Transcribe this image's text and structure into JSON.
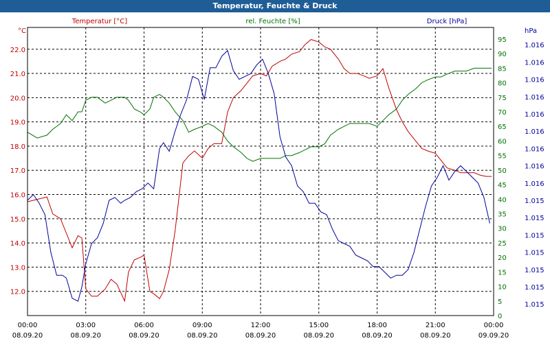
{
  "window": {
    "title": "Temperatur, Feuchte & Druck"
  },
  "colors": {
    "temperature": "#c00000",
    "humidity": "#007000",
    "pressure": "#00009a",
    "grid": "#000000",
    "title_bg": "#1f5d96"
  },
  "chart_data": {
    "type": "line",
    "title": "Temperatur, Feuchte & Druck",
    "x_ticks": [
      {
        "time": "00:00",
        "date": "08.09.20"
      },
      {
        "time": "03:00",
        "date": "08.09.20"
      },
      {
        "time": "06:00",
        "date": "08.09.20"
      },
      {
        "time": "09:00",
        "date": "08.09.20"
      },
      {
        "time": "12:00",
        "date": "08.09.20"
      },
      {
        "time": "15:00",
        "date": "08.09.20"
      },
      {
        "time": "18:00",
        "date": "08.09.20"
      },
      {
        "time": "21:00",
        "date": "08.09.20"
      },
      {
        "time": "00:00",
        "date": "09.09.20"
      }
    ],
    "x_range_hours": [
      0,
      24
    ],
    "grid": true,
    "axes": {
      "temperature": {
        "label": "Temperatur [°C]",
        "unit": "°C",
        "range": [
          11.0,
          22.9
        ],
        "ticks": [
          "12.0",
          "13.0",
          "14.0",
          "15.0",
          "16.0",
          "17.0",
          "18.0",
          "19.0",
          "20.0",
          "21.0",
          "22.0"
        ],
        "tick_values": [
          12,
          13,
          14,
          15,
          16,
          17,
          18,
          19,
          20,
          21,
          22
        ]
      },
      "humidity": {
        "label": "rel. Feuchte [%]",
        "unit": "%",
        "range": [
          0,
          99
        ],
        "ticks": [
          "0",
          "5",
          "10",
          "15",
          "20",
          "25",
          "30",
          "35",
          "40",
          "45",
          "50",
          "55",
          "60",
          "65",
          "70",
          "75",
          "80",
          "85",
          "90",
          "95"
        ],
        "tick_values": [
          0,
          5,
          10,
          15,
          20,
          25,
          30,
          35,
          40,
          45,
          50,
          55,
          60,
          65,
          70,
          75,
          80,
          85,
          90,
          95
        ]
      },
      "pressure": {
        "label": "Druck [hPa]",
        "unit": "hPa",
        "range": [
          0,
          100
        ],
        "ticks": [
          "1.015",
          "1.015",
          "1.015",
          "1.015",
          "1.015",
          "1.015",
          "1.015",
          "1.016",
          "1.016",
          "1.016",
          "1.016",
          "1.016",
          "1.016",
          "1.016",
          "1.016",
          "1.016"
        ],
        "tick_values": [
          4,
          10,
          16,
          22,
          28,
          34,
          40,
          46,
          52,
          58,
          64,
          70,
          76,
          82,
          88,
          94
        ]
      }
    },
    "series": [
      {
        "name": "Temperatur [°C]",
        "axis": "temperature",
        "x": [
          0,
          0.5,
          1,
          1.3,
          1.7,
          2,
          2.3,
          2.6,
          2.8,
          3,
          3.3,
          3.6,
          4,
          4.3,
          4.6,
          5,
          5.2,
          5.5,
          5.8,
          6,
          6.3,
          6.5,
          6.8,
          7,
          7.3,
          7.6,
          8,
          8.3,
          8.6,
          9,
          9.3,
          9.6,
          10,
          10.3,
          10.6,
          11,
          11.3,
          11.6,
          12,
          12.3,
          12.6,
          13,
          13.3,
          13.6,
          14,
          14.3,
          14.6,
          15,
          15.3,
          15.6,
          16,
          16.3,
          16.6,
          17,
          17.3,
          17.6,
          18,
          18.3,
          18.6,
          19,
          19.3,
          19.6,
          20,
          20.3,
          20.6,
          21,
          21.3,
          21.6,
          22,
          22.3,
          22.6,
          23,
          23.3,
          23.6,
          23.9
        ],
        "values": [
          15.7,
          15.8,
          15.9,
          15.2,
          15.0,
          14.4,
          13.8,
          14.3,
          14.2,
          12.1,
          11.8,
          11.8,
          12.1,
          12.5,
          12.3,
          11.6,
          12.8,
          13.3,
          13.4,
          13.5,
          12.0,
          11.9,
          11.7,
          12.0,
          12.9,
          14.5,
          17.3,
          17.6,
          17.8,
          17.5,
          17.9,
          18.1,
          18.1,
          19.4,
          20.0,
          20.3,
          20.6,
          20.9,
          21.0,
          20.9,
          21.3,
          21.5,
          21.6,
          21.8,
          21.9,
          22.2,
          22.4,
          22.3,
          22.1,
          22.0,
          21.6,
          21.2,
          21.0,
          21.0,
          20.9,
          20.8,
          20.9,
          21.2,
          20.4,
          19.5,
          19.0,
          18.6,
          18.2,
          17.9,
          17.8,
          17.7,
          17.4,
          17.1,
          17.0,
          16.9,
          16.9,
          16.9,
          16.8,
          16.75,
          16.75
        ]
      },
      {
        "name": "rel. Feuchte [%]",
        "axis": "humidity",
        "x": [
          0,
          0.5,
          1,
          1.3,
          1.7,
          2,
          2.3,
          2.6,
          2.8,
          3,
          3.3,
          3.6,
          4,
          4.3,
          4.6,
          5,
          5.2,
          5.5,
          5.8,
          6,
          6.3,
          6.5,
          6.8,
          7,
          7.3,
          7.6,
          8,
          8.3,
          8.6,
          9,
          9.3,
          9.6,
          10,
          10.3,
          10.6,
          11,
          11.3,
          11.6,
          12,
          12.3,
          12.6,
          13,
          13.3,
          13.6,
          14,
          14.3,
          14.6,
          15,
          15.3,
          15.6,
          16,
          16.3,
          16.6,
          17,
          17.3,
          17.6,
          18,
          18.3,
          18.6,
          19,
          19.3,
          19.6,
          20,
          20.3,
          20.6,
          21,
          21.3,
          21.6,
          22,
          22.3,
          22.6,
          23,
          23.3,
          23.6,
          23.9
        ],
        "values": [
          63,
          61,
          62,
          64,
          66,
          69,
          67,
          70,
          70,
          74,
          75,
          75,
          73,
          74,
          75,
          75,
          74,
          71,
          70,
          69,
          71,
          75,
          76,
          75,
          73,
          70,
          67,
          63,
          64,
          65,
          66,
          65,
          63,
          60,
          58,
          56,
          54,
          53,
          54,
          54,
          54,
          54,
          55,
          55,
          56,
          57,
          58,
          58,
          59,
          62,
          64,
          65,
          66,
          66,
          66,
          66,
          65,
          67,
          69,
          71,
          74,
          76,
          78,
          80,
          81,
          82,
          82,
          83,
          84,
          84,
          84,
          85,
          85,
          85,
          85
        ]
      },
      {
        "name": "Druck [hPa]",
        "axis": "pressure",
        "x": [
          0,
          0.3,
          0.6,
          0.9,
          1.2,
          1.5,
          1.8,
          2,
          2.3,
          2.6,
          2.8,
          3,
          3.3,
          3.6,
          3.9,
          4.2,
          4.5,
          4.8,
          5,
          5.3,
          5.6,
          5.9,
          6.2,
          6.5,
          6.8,
          7,
          7.3,
          7.6,
          7.9,
          8.2,
          8.5,
          8.8,
          9.1,
          9.4,
          9.7,
          10,
          10.3,
          10.6,
          10.9,
          11.2,
          11.5,
          11.8,
          12.1,
          12.4,
          12.7,
          13,
          13.3,
          13.6,
          13.9,
          14.2,
          14.5,
          14.8,
          15.1,
          15.4,
          15.7,
          16,
          16.3,
          16.6,
          16.9,
          17.2,
          17.5,
          17.8,
          18.1,
          18.4,
          18.7,
          19,
          19.3,
          19.6,
          19.9,
          20.2,
          20.5,
          20.8,
          21.1,
          21.4,
          21.7,
          22,
          22.3,
          22.6,
          22.9,
          23.2,
          23.5,
          23.8
        ],
        "values": [
          40,
          42,
          39,
          35,
          22,
          14,
          14,
          13,
          6,
          5,
          10,
          18,
          25,
          27,
          32,
          40,
          41,
          39,
          40,
          41,
          43,
          44,
          46,
          44,
          58,
          60,
          57,
          64,
          70,
          75,
          83,
          82,
          75,
          86,
          86,
          90,
          92,
          85,
          82,
          83,
          84,
          87,
          89,
          84,
          77,
          62,
          55,
          52,
          45,
          43,
          39,
          39,
          36,
          35,
          30,
          26,
          25,
          24,
          21,
          20,
          19,
          17,
          17,
          15,
          13,
          14,
          14,
          16,
          22,
          30,
          38,
          45,
          48,
          52,
          47,
          50,
          52,
          50,
          48,
          46,
          41,
          32
        ]
      }
    ],
    "legend": [
      "Temperatur [°C]",
      "rel. Feuchte [%]",
      "Druck [hPa]"
    ]
  }
}
